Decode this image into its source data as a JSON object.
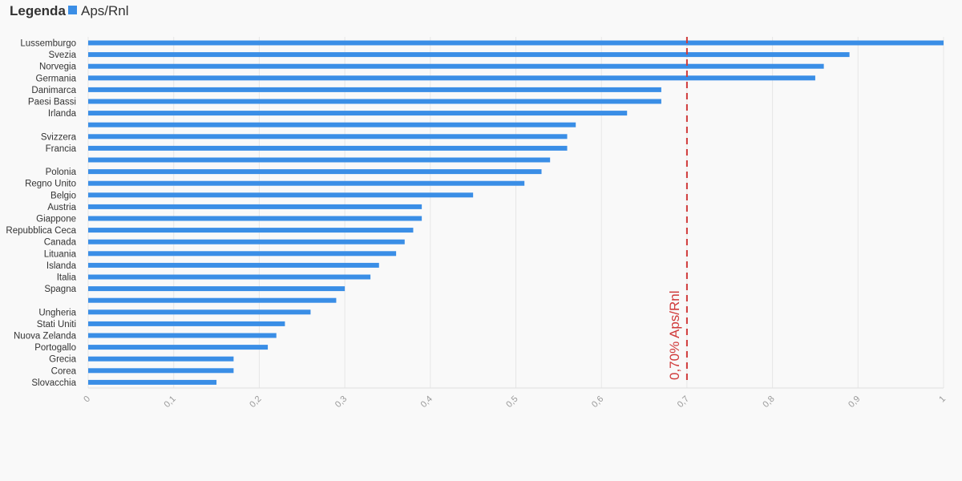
{
  "legend": {
    "title": "Legenda",
    "series_color": "#3a8ee6"
  },
  "chart_data": {
    "type": "bar",
    "orientation": "horizontal",
    "categories": [
      "Lussemburgo",
      "Svezia",
      "Norvegia",
      "Germania",
      "Danimarca",
      "Paesi Bassi",
      "Irlanda",
      "",
      "Svizzera",
      "Francia",
      "",
      "Polonia",
      "Regno Unito",
      "Belgio",
      "Austria",
      "Giappone",
      "Repubblica Ceca",
      "Canada",
      "Lituania",
      "Islanda",
      "Italia",
      "Spagna",
      "",
      "Ungheria",
      "Stati Uniti",
      "Nuova Zelanda",
      "Portogallo",
      "Grecia",
      "Corea",
      "Slovacchia"
    ],
    "series": [
      {
        "name": "Aps/Rnl",
        "color": "#3a8ee6",
        "values": [
          1.0,
          0.89,
          0.86,
          0.85,
          0.67,
          0.67,
          0.63,
          0.57,
          0.56,
          0.56,
          0.54,
          0.53,
          0.51,
          0.45,
          0.39,
          0.39,
          0.38,
          0.37,
          0.36,
          0.34,
          0.33,
          0.3,
          0.29,
          0.26,
          0.23,
          0.22,
          0.21,
          0.17,
          0.17,
          0.15
        ]
      }
    ],
    "xlim": [
      0,
      1
    ],
    "xticks": [
      "0",
      "0,1",
      "0,2",
      "0,3",
      "0,4",
      "0,5",
      "0,6",
      "0,7",
      "0,8",
      "0,9",
      "1"
    ],
    "grid": true,
    "legend_position": "top-left",
    "reference_line": {
      "value": 0.7,
      "label": "0,70% Aps/Rnl",
      "color": "#d03a3a"
    }
  }
}
